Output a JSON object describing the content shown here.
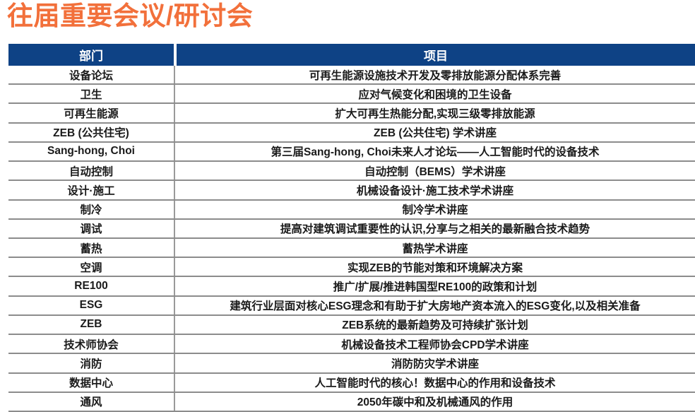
{
  "title": "往届重要会议/研讨会",
  "colors": {
    "title_orange": "#F2703B",
    "header_blue": "#0E4285",
    "row_line_gray": "#8C8C8C",
    "body_text": "#1A1A1A",
    "header_text": "#FFFFFF"
  },
  "table": {
    "headers": [
      "部门",
      "项目"
    ],
    "rows": [
      {
        "dept": "设备论坛",
        "project": "可再生能源设施技术开发及零排放能源分配体系完善"
      },
      {
        "dept": "卫生",
        "project": "应对气候变化和困境的卫生设备"
      },
      {
        "dept": "可再生能源",
        "project": "扩大可再生热能分配,实现三级零排放能源"
      },
      {
        "dept": "ZEB (公共住宅)",
        "project": "ZEB (公共住宅) 学术讲座"
      },
      {
        "dept": "Sang-hong, Choi",
        "project": "第三届Sang-hong, Choi未来人才论坛——人工智能时代的设备技术"
      },
      {
        "dept": "自动控制",
        "project": "自动控制（BEMS）学术讲座"
      },
      {
        "dept": "设计·施工",
        "project": "机械设备设计·施工技术学术讲座"
      },
      {
        "dept": "制冷",
        "project": "制冷学术讲座"
      },
      {
        "dept": "调试",
        "project": "提高对建筑调试重要性的认识,分享与之相关的最新融合技术趋势"
      },
      {
        "dept": "蓄热",
        "project": "蓄热学术讲座"
      },
      {
        "dept": "空调",
        "project": "实现ZEB的节能对策和环境解决方案"
      },
      {
        "dept": "RE100",
        "project": "推广/扩展/推进韩国型RE100的政策和计划"
      },
      {
        "dept": "ESG",
        "project": "建筑行业层面对核心ESG理念和有助于扩大房地产资本流入的ESG变化,以及相关准备"
      },
      {
        "dept": "ZEB",
        "project": "ZEB系统的最新趋势及可持续扩张计划"
      },
      {
        "dept": "技术师协会",
        "project": "机械设备技术工程师协会CPD学术讲座"
      },
      {
        "dept": "消防",
        "project": "消防防灾学术讲座"
      },
      {
        "dept": "数据中心",
        "project": "人工智能时代的核心！数据中心的作用和设备技术"
      },
      {
        "dept": "通风",
        "project": "2050年碳中和及机械通风的作用"
      }
    ]
  }
}
